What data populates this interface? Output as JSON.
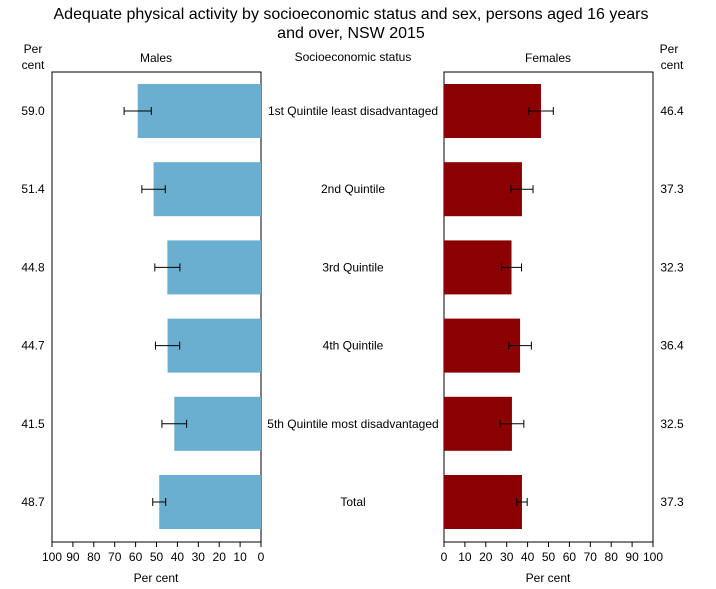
{
  "chart_data": {
    "type": "bar",
    "orientation": "horizontal-butterfly",
    "title": "Adequate physical activity by socioeconomic status and sex, persons aged 16 years and over, NSW 2015",
    "category_header": "Socioeconomic status",
    "value_header": [
      "Per",
      "cent"
    ],
    "categories": [
      "1st Quintile least disadvantaged",
      "2nd Quintile",
      "3rd Quintile",
      "4th Quintile",
      "5th Quintile most disadvantaged",
      "Total"
    ],
    "xlabel": "Per cent",
    "xlim": [
      0,
      100
    ],
    "xticks": [
      0,
      10,
      20,
      30,
      40,
      50,
      60,
      70,
      80,
      90,
      100
    ],
    "grid": false,
    "series": [
      {
        "name": "Males",
        "color": "#6aaed0",
        "values": [
          59.0,
          51.4,
          44.8,
          44.7,
          41.5,
          48.7
        ],
        "value_labels": [
          "59.0",
          "51.4",
          "44.8",
          "44.7",
          "41.5",
          "48.7"
        ],
        "ci_low": [
          52.5,
          45.8,
          38.8,
          38.9,
          35.6,
          45.6
        ],
        "ci_high": [
          65.5,
          57.0,
          50.8,
          50.5,
          47.4,
          51.8
        ]
      },
      {
        "name": "Females",
        "color": "#8b0000",
        "values": [
          46.4,
          37.3,
          32.3,
          36.4,
          32.5,
          37.3
        ],
        "value_labels": [
          "46.4",
          "37.3",
          "32.3",
          "36.4",
          "32.5",
          "37.3"
        ],
        "ci_low": [
          40.5,
          32.0,
          27.5,
          31.0,
          26.8,
          34.8
        ],
        "ci_high": [
          52.3,
          42.6,
          37.1,
          41.8,
          38.2,
          39.8
        ]
      }
    ]
  }
}
